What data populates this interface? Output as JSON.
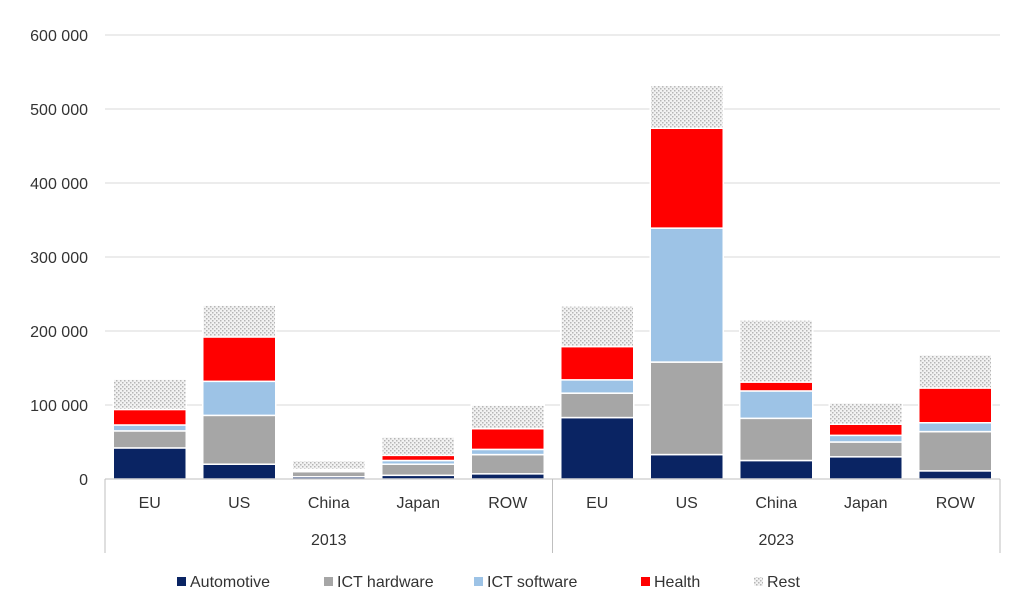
{
  "chart_data": {
    "type": "bar",
    "stacked": true,
    "title": "",
    "xlabel": "",
    "ylabel": "",
    "ylim": [
      0,
      600000
    ],
    "yticks": [
      0,
      100000,
      200000,
      300000,
      400000,
      500000,
      600000
    ],
    "ytick_labels": [
      "0",
      "100 000",
      "200 000",
      "300 000",
      "400 000",
      "500 000",
      "600 000"
    ],
    "grid": true,
    "legend_position": "bottom",
    "groups": [
      {
        "label": "2013",
        "categories": [
          "EU",
          "US",
          "China",
          "Japan",
          "ROW"
        ]
      },
      {
        "label": "2023",
        "categories": [
          "EU",
          "US",
          "China",
          "Japan",
          "ROW"
        ]
      }
    ],
    "series": [
      {
        "name": "Automotive",
        "color": "#0a2463",
        "pattern": "solid",
        "values": [
          42000,
          20000,
          3000,
          5000,
          7000,
          83000,
          33000,
          25000,
          30000,
          11000
        ]
      },
      {
        "name": "ICT hardware",
        "color": "#a6a6a6",
        "pattern": "solid",
        "values": [
          23000,
          66000,
          7000,
          15000,
          26000,
          33000,
          125000,
          57000,
          20000,
          53000
        ]
      },
      {
        "name": "ICT software",
        "color": "#9dc3e6",
        "pattern": "solid",
        "values": [
          8000,
          46000,
          2000,
          5000,
          7000,
          18000,
          181000,
          37000,
          9000,
          12000
        ]
      },
      {
        "name": "Health",
        "color": "#ff0000",
        "pattern": "solid",
        "values": [
          21000,
          60000,
          1000,
          7000,
          28000,
          45000,
          135000,
          12000,
          15000,
          47000
        ]
      },
      {
        "name": "Rest",
        "color": "#dcdcdc",
        "pattern": "dotted",
        "values": [
          41000,
          43000,
          12000,
          25000,
          32000,
          55000,
          58000,
          84000,
          29000,
          45000
        ]
      }
    ]
  }
}
